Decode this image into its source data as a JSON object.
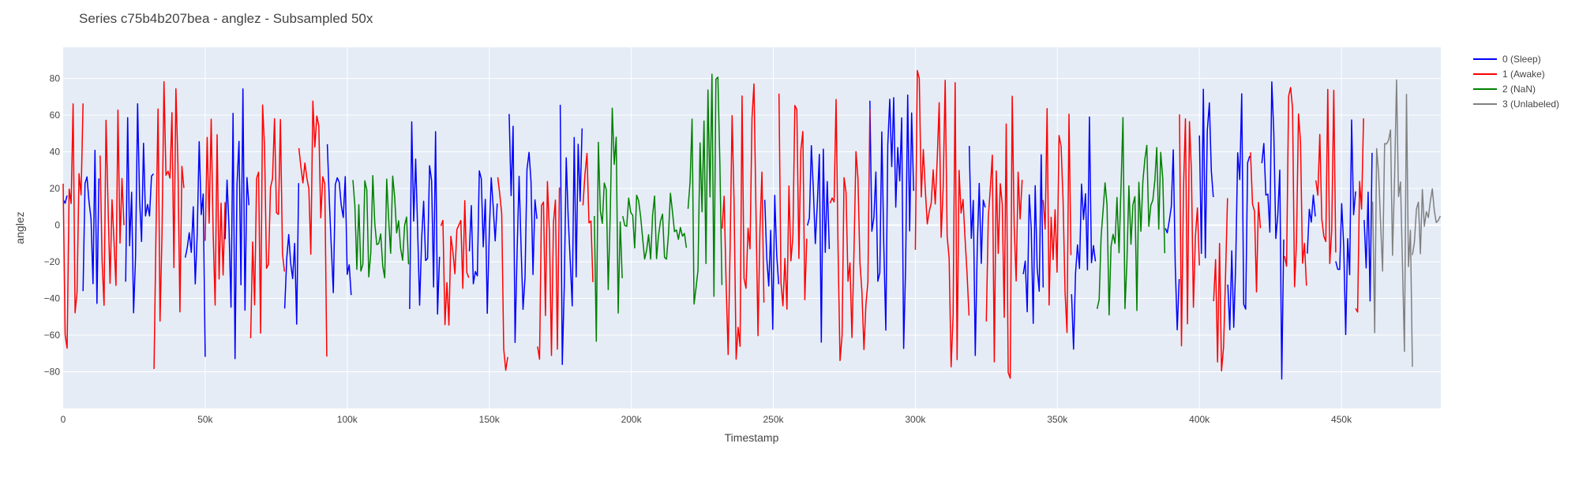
{
  "chart_data": {
    "type": "line",
    "title": "Series c75b4b207bea - anglez - Subsampled 50x",
    "xlabel": "Timestamp",
    "ylabel": "anglez",
    "xlim": [
      0,
      485000
    ],
    "ylim": [
      -100,
      97
    ],
    "x_ticks": [
      0,
      50000,
      100000,
      150000,
      200000,
      250000,
      300000,
      350000,
      400000,
      450000
    ],
    "x_tick_labels": [
      "0",
      "50k",
      "100k",
      "150k",
      "200k",
      "250k",
      "300k",
      "350k",
      "400k",
      "450k"
    ],
    "y_ticks": [
      -80,
      -60,
      -40,
      -20,
      0,
      20,
      40,
      60,
      80
    ],
    "y_tick_labels": [
      "−80",
      "−60",
      "−40",
      "−20",
      "0",
      "20",
      "40",
      "60",
      "80"
    ],
    "grid": true,
    "legend_position": "top-right",
    "plot_background": "#e5ecf6",
    "series": [
      {
        "name": "0 (Sleep)",
        "label": "0",
        "color": "#0000ff",
        "segments": [
          [
            0,
            2000
          ],
          [
            7000,
            13000
          ],
          [
            22000,
            32000
          ],
          [
            43000,
            50000
          ],
          [
            57000,
            66000
          ],
          [
            78000,
            83000
          ],
          [
            93000,
            102000
          ],
          [
            122000,
            133000
          ],
          [
            143000,
            153000
          ],
          [
            157000,
            167000
          ],
          [
            175000,
            183000
          ],
          [
            247000,
            252000
          ],
          [
            262000,
            270000
          ],
          [
            284000,
            300000
          ],
          [
            319000,
            325000
          ],
          [
            338000,
            345000
          ],
          [
            355000,
            364000
          ],
          [
            388000,
            393000
          ],
          [
            400000,
            405000
          ],
          [
            410000,
            418000
          ],
          [
            422000,
            430000
          ],
          [
            438000,
            441000
          ],
          [
            448000,
            455000
          ],
          [
            458000,
            461000
          ]
        ],
        "amplitudes": [
          45,
          55,
          70,
          75,
          75,
          55,
          75,
          60,
          65,
          70,
          80,
          65,
          70,
          72,
          75,
          60,
          70,
          80,
          80,
          78,
          85,
          60,
          70,
          65
        ]
      },
      {
        "name": "1 (Awake)",
        "label": "1",
        "color": "#ff0000",
        "segments": [
          [
            0,
            7000
          ],
          [
            13000,
            22000
          ],
          [
            32000,
            43000
          ],
          [
            50000,
            57000
          ],
          [
            66000,
            78000
          ],
          [
            83000,
            93000
          ],
          [
            133000,
            143000
          ],
          [
            153000,
            157000
          ],
          [
            167000,
            175000
          ],
          [
            183000,
            187000
          ],
          [
            232000,
            247000
          ],
          [
            252000,
            262000
          ],
          [
            270000,
            284000
          ],
          [
            300000,
            319000
          ],
          [
            325000,
            338000
          ],
          [
            345000,
            355000
          ],
          [
            393000,
            400000
          ],
          [
            405000,
            410000
          ],
          [
            418000,
            422000
          ],
          [
            430000,
            438000
          ],
          [
            441000,
            448000
          ],
          [
            455000,
            458000
          ]
        ],
        "amplitudes": [
          85,
          72,
          80,
          60,
          75,
          72,
          70,
          85,
          75,
          80,
          85,
          75,
          80,
          85,
          85,
          75,
          70,
          80,
          85,
          80,
          80,
          70
        ]
      },
      {
        "name": "2 (NaN)",
        "label": "2",
        "color": "#008000",
        "segments": [
          [
            102000,
            122000
          ],
          [
            187000,
            197000
          ],
          [
            197000,
            220000
          ],
          [
            220000,
            232000
          ],
          [
            364000,
            388000
          ]
        ],
        "amplitudes": [
          30,
          75,
          20,
          85,
          60
        ]
      },
      {
        "name": "3 (Unlabeled)",
        "label": "3",
        "color": "#808080",
        "segments": [
          [
            461000,
            475000
          ],
          [
            475000,
            485000
          ]
        ],
        "amplitudes": [
          80,
          20
        ]
      }
    ]
  }
}
